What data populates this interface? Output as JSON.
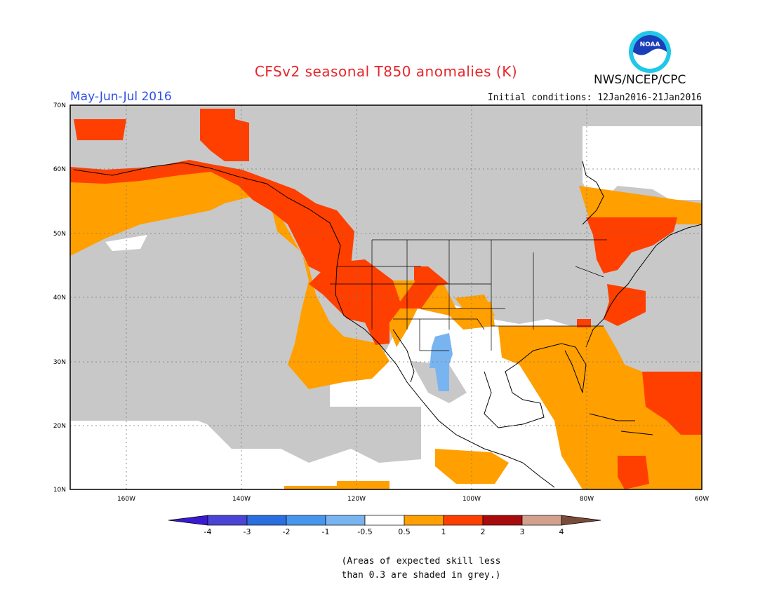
{
  "header": {
    "title": "CFSv2 seasonal T850 anomalies (K)",
    "period": "May-Jun-Jul 2016",
    "initial_conditions": "Initial conditions: 12Jan2016-21Jan2016",
    "agency": "NWS/NCEP/CPC",
    "logo_text": "NOAA"
  },
  "map": {
    "lat_labels": [
      "70N",
      "60N",
      "50N",
      "40N",
      "30N",
      "20N",
      "10N"
    ],
    "lon_labels": [
      "160W",
      "140W",
      "120W",
      "100W",
      "80W",
      "60W"
    ],
    "skill_mask_color": "#c8c8c8",
    "anomaly_colors": {
      "0.5_to_1": "#ff9f00",
      "1_to_2": "#ff3f00",
      "-1_to_-0.5": "#78b4f0"
    }
  },
  "colorbar": {
    "labels": [
      "-4",
      "-3",
      "-2",
      "-1",
      "-0.5",
      "0.5",
      "1",
      "2",
      "3",
      "4"
    ],
    "colors": [
      "#3a1ad0",
      "#4a45d6",
      "#2a6ee0",
      "#4796ee",
      "#78b4f0",
      "#ffffff",
      "#ff9f00",
      "#ff3f00",
      "#a80b0b",
      "#d2a08c",
      "#7a4a3a"
    ]
  },
  "notes": {
    "line1": "(Areas of expected skill less",
    "line2": "than 0.3 are shaded in grey.)"
  }
}
